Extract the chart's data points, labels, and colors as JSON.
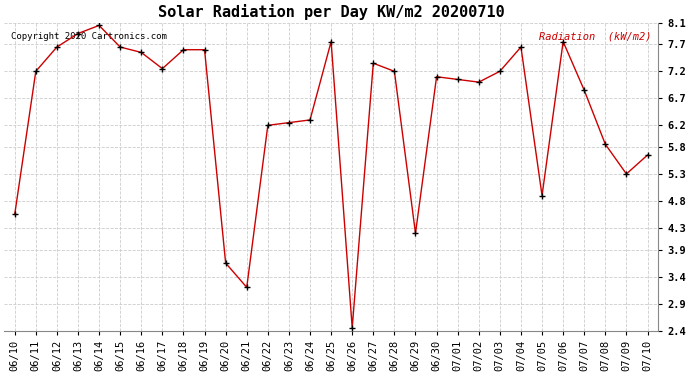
{
  "title": "Solar Radiation per Day KW/m2 20200710",
  "copyright_text": "Copyright 2020 Cartronics.com",
  "legend_label": "Radiation  (kW/m2)",
  "dates": [
    "06/10",
    "06/11",
    "06/12",
    "06/13",
    "06/14",
    "06/15",
    "06/16",
    "06/17",
    "06/18",
    "06/19",
    "06/20",
    "06/21",
    "06/22",
    "06/23",
    "06/24",
    "06/25",
    "06/26",
    "06/27",
    "06/28",
    "06/29",
    "06/30",
    "07/01",
    "07/02",
    "07/03",
    "07/04",
    "07/05",
    "07/06",
    "07/07",
    "07/08",
    "07/09",
    "07/10"
  ],
  "values": [
    4.55,
    7.2,
    7.65,
    7.9,
    8.05,
    7.65,
    7.55,
    7.25,
    7.6,
    7.6,
    3.65,
    3.2,
    6.2,
    6.25,
    6.3,
    7.75,
    2.45,
    7.35,
    7.2,
    4.2,
    7.1,
    7.05,
    7.0,
    7.2,
    7.65,
    4.9,
    7.75,
    6.85,
    5.85,
    5.3,
    5.65
  ],
  "line_color": "#cc0000",
  "marker_color": "#000000",
  "grid_color": "#cccccc",
  "background_color": "#ffffff",
  "title_fontsize": 11,
  "tick_fontsize": 7.5,
  "ylim": [
    2.4,
    8.1
  ],
  "yticks": [
    2.4,
    2.9,
    3.4,
    3.9,
    4.3,
    4.8,
    5.3,
    5.8,
    6.2,
    6.7,
    7.2,
    7.7,
    8.1
  ]
}
